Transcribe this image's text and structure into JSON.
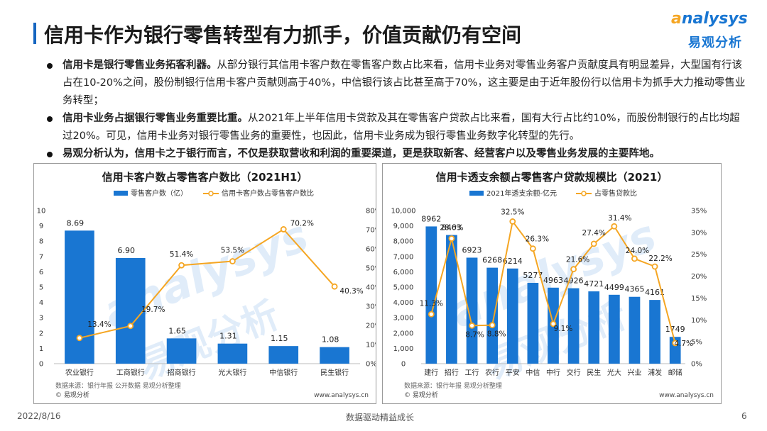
{
  "page_title": "信用卡作为银行零售转型有力抓手，价值贡献仍有空间",
  "logo": {
    "en_prefix": "a",
    "en_rest": "nalysys",
    "cn": "易观分析"
  },
  "bullets": [
    {
      "bold": "信用卡是银行零售业务拓客利器。",
      "text": "从部分银行其信用卡客户数在零售客户数占比来看，信用卡业务对零售业务客户贡献度具有明显差异，大型国有行该占在10-20%之间，股份制银行信用卡客户贡献则高于40%，中信银行该占比甚至高于70%，这主要是由于近年股份行以信用卡为抓手大力推动零售业务转型；"
    },
    {
      "bold": "信用卡业务占据银行零售业务重要比重。",
      "text": "从2021年上半年信用卡贷款及其在零售客户贷款占比来看，国有大行占比约10%，而股份制银行的占比均超过20%。可见，信用卡业务对银行零售业务的重要性，也因此，信用卡业务成为银行零售业务数字化转型的先行。"
    },
    {
      "bold": "易观分析认为，信用卡之于银行而言，不仅是获取营收和利润的重要渠道，更是获取新客、经营客户以及零售业务发展的主要阵地。",
      "text": ""
    }
  ],
  "chart_data": [
    {
      "type": "bar",
      "title": "信用卡客户数占零售客户数比（2021H1）",
      "categories": [
        "农业银行",
        "工商银行",
        "招商银行",
        "光大银行",
        "中信银行",
        "民生银行"
      ],
      "series": [
        {
          "name": "零售客户数（亿）",
          "type": "bar",
          "axis": "left",
          "values": [
            8.69,
            6.9,
            1.65,
            1.31,
            1.15,
            1.08
          ],
          "labels": [
            "8.69",
            "6.90",
            "1.65",
            "1.31",
            "1.15",
            "1.08"
          ]
        },
        {
          "name": "信用卡客户数占零售客户数比",
          "type": "line",
          "axis": "right",
          "values": [
            13.4,
            19.7,
            51.4,
            53.5,
            70.2,
            40.3
          ],
          "labels": [
            "13.4%",
            "19.7%",
            "51.4%",
            "53.5%",
            "70.2%",
            "40.3%"
          ]
        }
      ],
      "ylim_left": [
        0,
        10
      ],
      "yticks_left": [
        "0",
        "1",
        "2",
        "3",
        "4",
        "5",
        "6",
        "7",
        "8",
        "9",
        "10"
      ],
      "ylim_right": [
        0,
        80
      ],
      "yticks_right": [
        "0%",
        "10%",
        "20%",
        "30%",
        "40%",
        "50%",
        "60%",
        "70%",
        "80%"
      ],
      "legend": "top",
      "source": "数据来源：银行年报 公开数据 易观分析整理",
      "copyright": "© 易观分析",
      "url": "www.analysys.cn",
      "colors": {
        "bar": "#1976d2",
        "line": "#f5a623"
      }
    },
    {
      "type": "bar",
      "title": "信用卡透支余额占零售客户贷款规模比（2021）",
      "categories": [
        "建行",
        "招行",
        "工行",
        "农行",
        "平安",
        "中信",
        "中行",
        "交行",
        "民生",
        "光大",
        "兴业",
        "浦发",
        "邮储"
      ],
      "series": [
        {
          "name": "2021年透支余额-亿元",
          "type": "bar",
          "axis": "left",
          "values": [
            8962,
            8403,
            6923,
            6268,
            6214,
            5277,
            4963,
            4926,
            4721,
            4499,
            4365,
            4161,
            1749
          ],
          "labels": [
            "8962",
            "8403",
            "6923",
            "6268",
            "6214",
            "5277",
            "4963",
            "4926",
            "4721",
            "4499",
            "4365",
            "4161",
            "1749"
          ]
        },
        {
          "name": "占零售贷款比",
          "type": "line",
          "axis": "right",
          "values": [
            11.3,
            28.6,
            8.7,
            8.8,
            32.5,
            26.3,
            9.1,
            21.6,
            27.4,
            31.4,
            24.0,
            22.2,
            4.7
          ],
          "labels": [
            "11.3%",
            "28.6%",
            "8.7%",
            "8.8%",
            "32.5%",
            "26.3%",
            "9.1%",
            "21.6%",
            "27.4%",
            "31.4%",
            "24.0%",
            "22.2%",
            "4.7%"
          ]
        }
      ],
      "ylim_left": [
        0,
        10000
      ],
      "yticks_left": [
        "0",
        "1,000",
        "2,000",
        "3,000",
        "4,000",
        "5,000",
        "6,000",
        "7,000",
        "8,000",
        "9,000",
        "10,000"
      ],
      "ylim_right": [
        0,
        35
      ],
      "yticks_right": [
        "0%",
        "5%",
        "10%",
        "15%",
        "20%",
        "25%",
        "30%",
        "35%"
      ],
      "legend": "top",
      "source": "数据来源：银行年报 易观分析整理",
      "copyright": "© 易观分析",
      "url": "www.analysys.cn",
      "colors": {
        "bar": "#1976d2",
        "line": "#f5a623"
      }
    }
  ],
  "footer": {
    "date": "2022/8/16",
    "slogan": "数据驱动精益成长",
    "page": "6"
  }
}
